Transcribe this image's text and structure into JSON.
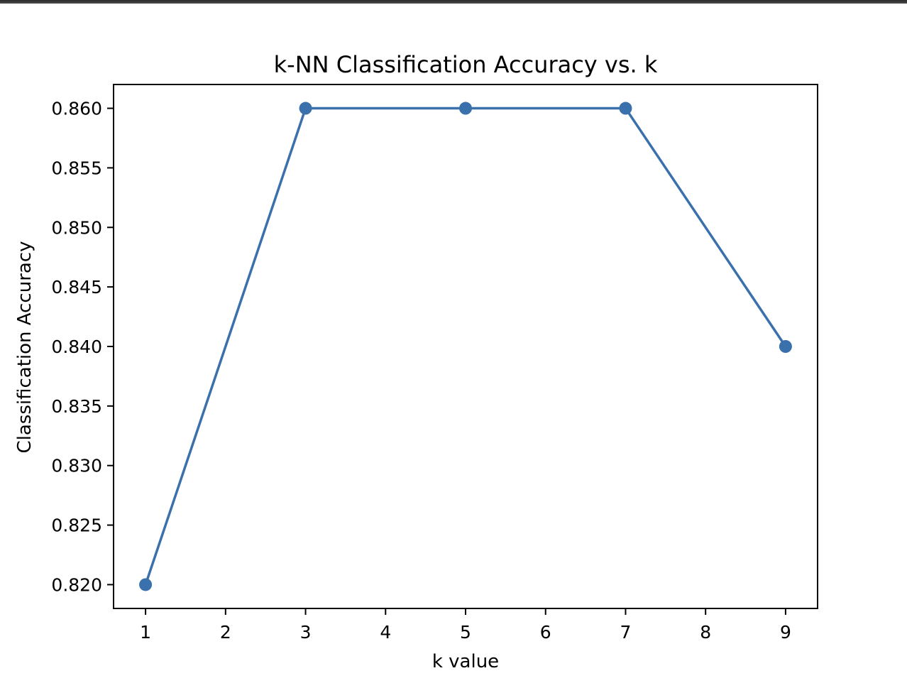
{
  "chart_data": {
    "type": "line",
    "title": "k-NN Classification Accuracy vs. k",
    "xlabel": "k value",
    "ylabel": "Classification Accuracy",
    "x": [
      1,
      3,
      5,
      7,
      9
    ],
    "y": [
      0.82,
      0.86,
      0.86,
      0.86,
      0.84
    ],
    "xlim": [
      0.6,
      9.4
    ],
    "ylim": [
      0.818,
      0.862
    ],
    "xticks": [
      1,
      2,
      3,
      4,
      5,
      6,
      7,
      8,
      9
    ],
    "xtick_labels": [
      "1",
      "2",
      "3",
      "4",
      "5",
      "6",
      "7",
      "8",
      "9"
    ],
    "yticks": [
      0.82,
      0.825,
      0.83,
      0.835,
      0.84,
      0.845,
      0.85,
      0.855,
      0.86
    ],
    "ytick_labels": [
      "0.820",
      "0.825",
      "0.830",
      "0.835",
      "0.840",
      "0.845",
      "0.850",
      "0.855",
      "0.860"
    ],
    "grid": false,
    "markers": "circle",
    "line_color": "#3a70ab"
  }
}
